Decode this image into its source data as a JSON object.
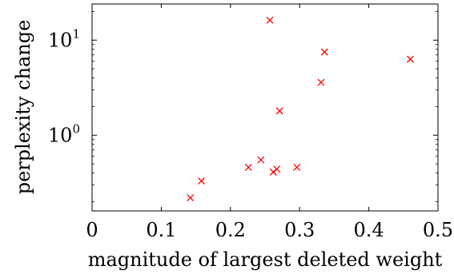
{
  "chart_data": {
    "type": "scatter",
    "title": "",
    "xlabel": "magnitude of largest deleted weight",
    "ylabel": "perplexity change",
    "xlim": [
      0,
      0.5
    ],
    "ylim": [
      0.16,
      24
    ],
    "yscale": "log",
    "grid": false,
    "x_ticks": [
      {
        "value": 0,
        "label": "0"
      },
      {
        "value": 0.1,
        "label": "0.1"
      },
      {
        "value": 0.2,
        "label": "0.2"
      },
      {
        "value": 0.3,
        "label": "0.3"
      },
      {
        "value": 0.4,
        "label": "0.4"
      },
      {
        "value": 0.5,
        "label": "0.5"
      }
    ],
    "y_ticks": [
      {
        "value": 1,
        "base": "10",
        "exponent": "0"
      },
      {
        "value": 10,
        "base": "10",
        "exponent": "1"
      }
    ],
    "marker": "x",
    "color": "#ff0000",
    "points": [
      {
        "x": 0.142,
        "y": 0.22
      },
      {
        "x": 0.158,
        "y": 0.33
      },
      {
        "x": 0.226,
        "y": 0.46
      },
      {
        "x": 0.244,
        "y": 0.55
      },
      {
        "x": 0.257,
        "y": 16.2
      },
      {
        "x": 0.262,
        "y": 0.41
      },
      {
        "x": 0.267,
        "y": 0.44
      },
      {
        "x": 0.271,
        "y": 1.8
      },
      {
        "x": 0.296,
        "y": 0.46
      },
      {
        "x": 0.331,
        "y": 3.6
      },
      {
        "x": 0.336,
        "y": 7.5
      },
      {
        "x": 0.46,
        "y": 6.3
      }
    ]
  }
}
